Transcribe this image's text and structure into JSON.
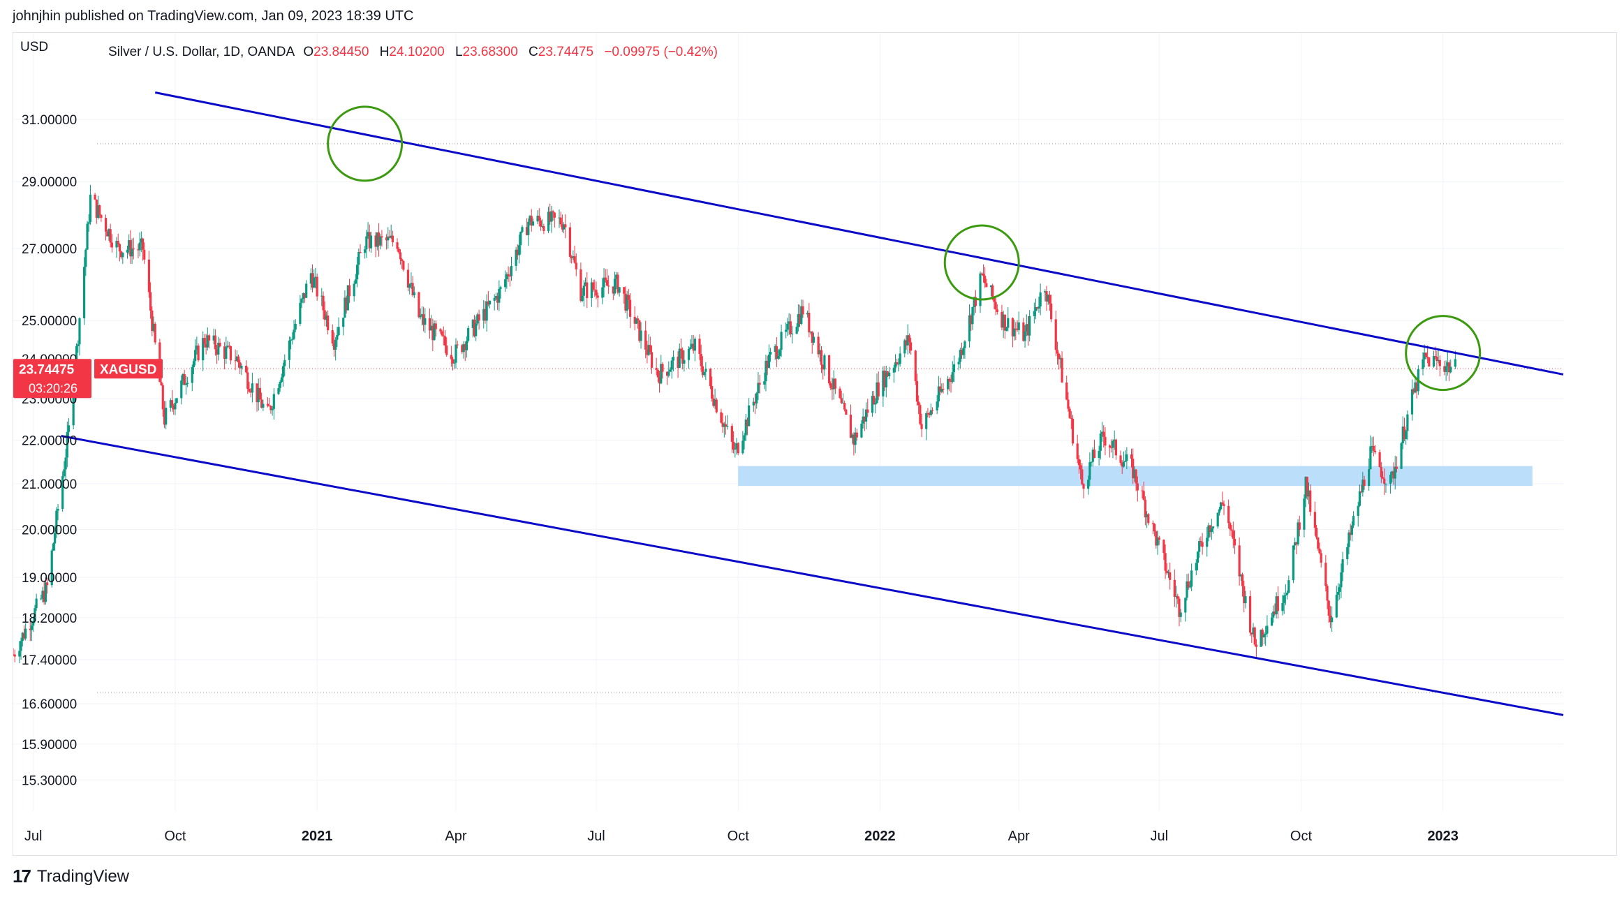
{
  "header": {
    "published_by": "johnjhin published on TradingView.com, Jan 09, 2023 18:39 UTC"
  },
  "legend": {
    "currency": "USD",
    "symbol_desc": "Silver / U.S. Dollar, 1D, OANDA",
    "open_label": "O",
    "open_value": "23.84450",
    "high_label": "H",
    "high_value": "24.10200",
    "low_label": "L",
    "low_value": "23.68300",
    "close_label": "C",
    "close_value": "23.74475",
    "change": "−0.09975 (−0.42%)"
  },
  "price_tag": {
    "price": "23.74475",
    "symbol": "XAGUSD",
    "countdown": "03:20:26",
    "color": "#f23645"
  },
  "footer": {
    "logo_text": "TradingView"
  },
  "colors": {
    "up_candle": "#089981",
    "down_candle": "#f23645",
    "channel_line": "#0a0ac8",
    "circle": "#3c9a10",
    "zone": "#bbdefb",
    "grid": "#f0f3fa"
  },
  "chart_data": {
    "type": "candlestick",
    "title": "Silver / U.S. Dollar, 1D, OANDA",
    "scale": "log",
    "ylim": [
      14.8,
      34.0
    ],
    "y_ticks": [
      "31.00000",
      "29.00000",
      "27.00000",
      "25.00000",
      "24.00000",
      "23.00000",
      "22.00000",
      "21.00000",
      "20.00000",
      "19.00000",
      "18.20000",
      "17.40000",
      "16.60000",
      "15.90000",
      "15.30000"
    ],
    "y_tick_values": [
      31.0,
      29.0,
      27.0,
      25.0,
      24.0,
      23.0,
      22.0,
      21.0,
      20.0,
      19.0,
      18.2,
      17.4,
      16.6,
      15.9,
      15.3
    ],
    "x_range": [
      "2020-06-18",
      "2023-03-20"
    ],
    "x_ticks": [
      {
        "label": "Jul",
        "date": "2020-07-01",
        "bold": false
      },
      {
        "label": "Oct",
        "date": "2020-10-01",
        "bold": false
      },
      {
        "label": "2021",
        "date": "2021-01-01",
        "bold": true
      },
      {
        "label": "Apr",
        "date": "2021-04-01",
        "bold": false
      },
      {
        "label": "Jul",
        "date": "2021-07-01",
        "bold": false
      },
      {
        "label": "Oct",
        "date": "2021-10-01",
        "bold": false
      },
      {
        "label": "2022",
        "date": "2022-01-01",
        "bold": true
      },
      {
        "label": "Apr",
        "date": "2022-04-01",
        "bold": false
      },
      {
        "label": "Jul",
        "date": "2022-07-01",
        "bold": false
      },
      {
        "label": "Oct",
        "date": "2022-10-01",
        "bold": false
      },
      {
        "label": "2023",
        "date": "2023-01-01",
        "bold": true
      }
    ],
    "price_path_anchors": [
      {
        "date": "2020-06-18",
        "price": 17.5
      },
      {
        "date": "2020-07-10",
        "price": 18.8
      },
      {
        "date": "2020-07-25",
        "price": 22.5
      },
      {
        "date": "2020-08-07",
        "price": 28.5
      },
      {
        "date": "2020-08-25",
        "price": 27.0
      },
      {
        "date": "2020-09-10",
        "price": 27.0
      },
      {
        "date": "2020-09-24",
        "price": 22.5
      },
      {
        "date": "2020-10-20",
        "price": 24.5
      },
      {
        "date": "2020-11-10",
        "price": 24.0
      },
      {
        "date": "2020-11-30",
        "price": 22.6
      },
      {
        "date": "2020-12-28",
        "price": 26.3
      },
      {
        "date": "2021-01-12",
        "price": 24.5
      },
      {
        "date": "2021-02-01",
        "price": 27.2
      },
      {
        "date": "2021-02-22",
        "price": 27.2
      },
      {
        "date": "2021-03-08",
        "price": 25.1
      },
      {
        "date": "2021-03-31",
        "price": 24.1
      },
      {
        "date": "2021-04-30",
        "price": 25.8
      },
      {
        "date": "2021-05-18",
        "price": 27.8
      },
      {
        "date": "2021-06-10",
        "price": 27.8
      },
      {
        "date": "2021-06-21",
        "price": 25.8
      },
      {
        "date": "2021-07-15",
        "price": 26.0
      },
      {
        "date": "2021-08-10",
        "price": 23.6
      },
      {
        "date": "2021-09-03",
        "price": 24.3
      },
      {
        "date": "2021-09-29",
        "price": 21.7
      },
      {
        "date": "2021-10-20",
        "price": 23.9
      },
      {
        "date": "2021-11-12",
        "price": 25.3
      },
      {
        "date": "2021-12-15",
        "price": 22.0
      },
      {
        "date": "2021-12-31",
        "price": 23.3
      },
      {
        "date": "2022-01-20",
        "price": 24.5
      },
      {
        "date": "2022-01-28",
        "price": 22.3
      },
      {
        "date": "2022-02-20",
        "price": 23.9
      },
      {
        "date": "2022-03-08",
        "price": 26.2
      },
      {
        "date": "2022-03-22",
        "price": 25.0
      },
      {
        "date": "2022-04-05",
        "price": 24.6
      },
      {
        "date": "2022-04-18",
        "price": 26.0
      },
      {
        "date": "2022-05-12",
        "price": 21.0
      },
      {
        "date": "2022-05-26",
        "price": 22.1
      },
      {
        "date": "2022-06-14",
        "price": 21.3
      },
      {
        "date": "2022-07-14",
        "price": 18.4
      },
      {
        "date": "2022-08-01",
        "price": 20.0
      },
      {
        "date": "2022-08-12",
        "price": 20.6
      },
      {
        "date": "2022-09-01",
        "price": 17.7
      },
      {
        "date": "2022-09-23",
        "price": 18.9
      },
      {
        "date": "2022-10-04",
        "price": 21.0
      },
      {
        "date": "2022-10-20",
        "price": 18.2
      },
      {
        "date": "2022-11-15",
        "price": 21.7
      },
      {
        "date": "2022-11-28",
        "price": 21.0
      },
      {
        "date": "2022-12-12",
        "price": 23.0
      },
      {
        "date": "2022-12-20",
        "price": 24.0
      },
      {
        "date": "2022-12-30",
        "price": 23.9
      },
      {
        "date": "2023-01-09",
        "price": 23.74475
      }
    ],
    "channel": {
      "upper": [
        {
          "date": "2020-09-18",
          "price": 31.9
        },
        {
          "date": "2023-03-20",
          "price": 23.6
        }
      ],
      "lower": [
        {
          "date": "2020-07-19",
          "price": 22.1
        },
        {
          "date": "2023-03-20",
          "price": 16.4
        }
      ]
    },
    "support_zone": {
      "from": "2021-10-01",
      "to": "2023-02-28",
      "low": 20.95,
      "high": 21.4
    },
    "markers": [
      {
        "date": "2021-02-01",
        "price": 30.2
      },
      {
        "date": "2022-03-08",
        "price": 26.6
      },
      {
        "date": "2023-01-01",
        "price": 24.15
      }
    ],
    "dotted_levels": [
      30.2,
      23.74475,
      16.8
    ]
  }
}
